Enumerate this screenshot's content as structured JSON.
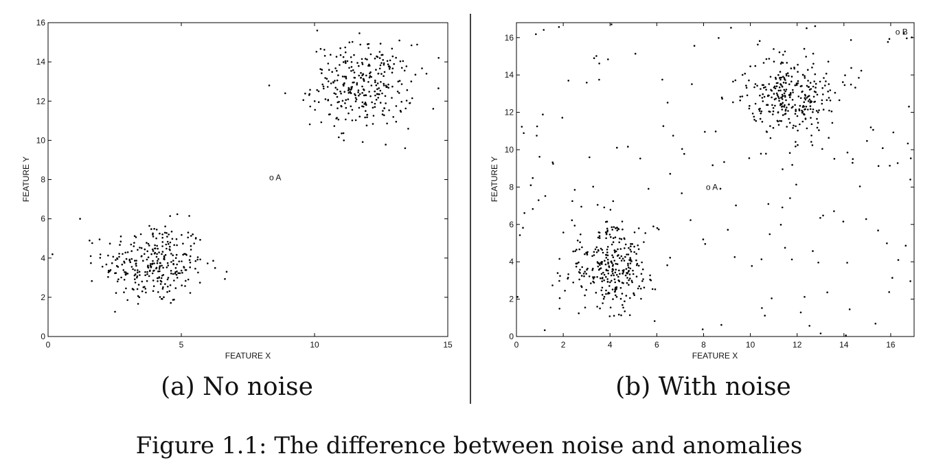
{
  "caption": "Figure 1.1: The difference between noise and anomalies",
  "chart_data": [
    {
      "type": "scatter",
      "subcaption": "(a) No noise",
      "xlabel": "FEATURE X",
      "ylabel": "FEATURE Y",
      "xlim": [
        0,
        15
      ],
      "ylim": [
        0,
        16
      ],
      "xticks": [
        "0",
        "5",
        "10",
        "15"
      ],
      "yticks": [
        "0",
        "2",
        "4",
        "6",
        "8",
        "10",
        "12",
        "14",
        "16"
      ],
      "clusters": [
        {
          "center": [
            4.0,
            3.7
          ],
          "spread": [
            0.95,
            1.05
          ],
          "count": 300
        },
        {
          "center": [
            11.8,
            12.8
          ],
          "spread": [
            0.95,
            1.05
          ],
          "count": 300
        }
      ],
      "extra_points": [
        [
          1.2,
          6.0
        ],
        [
          8.3,
          12.8
        ],
        [
          8.9,
          12.4
        ],
        [
          13.4,
          9.6
        ],
        [
          14.2,
          13.4
        ],
        [
          10.1,
          15.6
        ],
        [
          11.1,
          10.0
        ],
        [
          1.6,
          4.1
        ],
        [
          6.7,
          3.3
        ]
      ],
      "annotations": [
        {
          "label": "o A",
          "x": 8.3,
          "y": 8.1
        }
      ]
    },
    {
      "type": "scatter",
      "subcaption": "(b) With noise",
      "xlabel": "FEATURE X",
      "ylabel": "FEATURE Y",
      "xlim": [
        0,
        17
      ],
      "ylim": [
        0,
        16.8
      ],
      "xticks": [
        "0",
        "2",
        "4",
        "6",
        "8",
        "10",
        "12",
        "14",
        "16"
      ],
      "yticks": [
        "0",
        "2",
        "4",
        "6",
        "8",
        "10",
        "12",
        "14",
        "16"
      ],
      "clusters": [
        {
          "center": [
            4.0,
            3.7
          ],
          "spread": [
            0.95,
            1.05
          ],
          "count": 300
        },
        {
          "center": [
            11.8,
            12.8
          ],
          "spread": [
            0.95,
            1.05
          ],
          "count": 300
        }
      ],
      "noise_count": 170,
      "annotations": [
        {
          "label": "o A",
          "x": 8.1,
          "y": 8.0
        },
        {
          "label": "o B",
          "x": 16.2,
          "y": 16.3
        }
      ]
    }
  ]
}
